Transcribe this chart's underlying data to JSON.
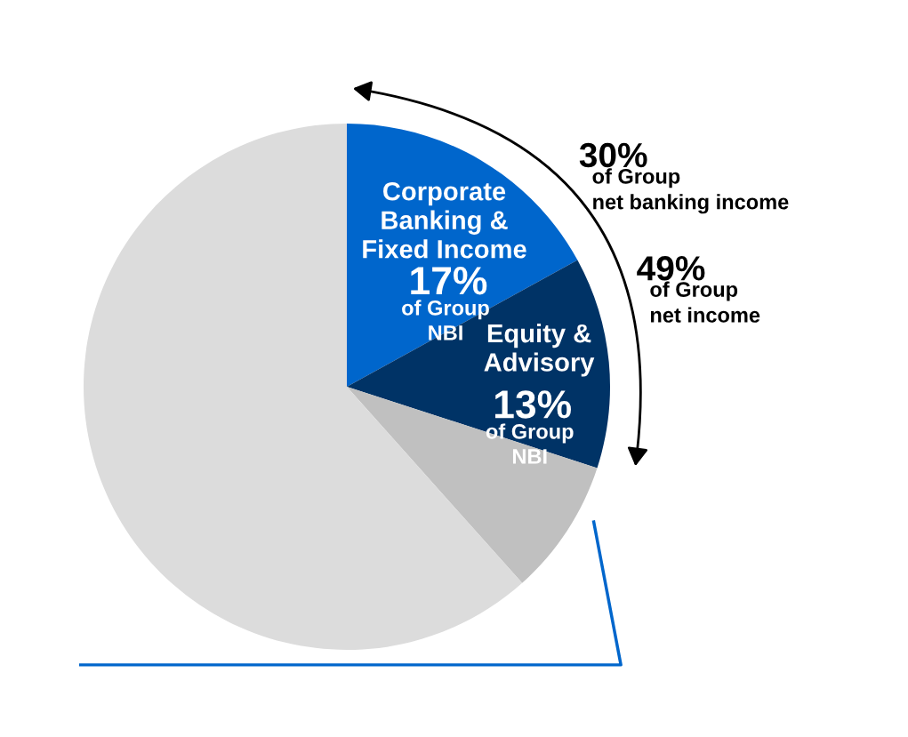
{
  "chart_data": {
    "type": "pie",
    "categories": [
      "Corporate\nBanking &\nFixed Income",
      "Equity &\nAdvisory",
      null,
      null
    ],
    "values": [
      17,
      13,
      8.4,
      61.6
    ],
    "colors": [
      "#0066cc",
      "#003366",
      "#c0c0c0",
      "#dcdcdc"
    ],
    "value_labels": [
      "17%\nof Group\nNBI",
      "13%\nof Group\nNBI",
      null,
      null
    ],
    "annotations": [
      "30%\nof Group\nnet banking income",
      "49%\nof Group\nnet income"
    ]
  }
}
